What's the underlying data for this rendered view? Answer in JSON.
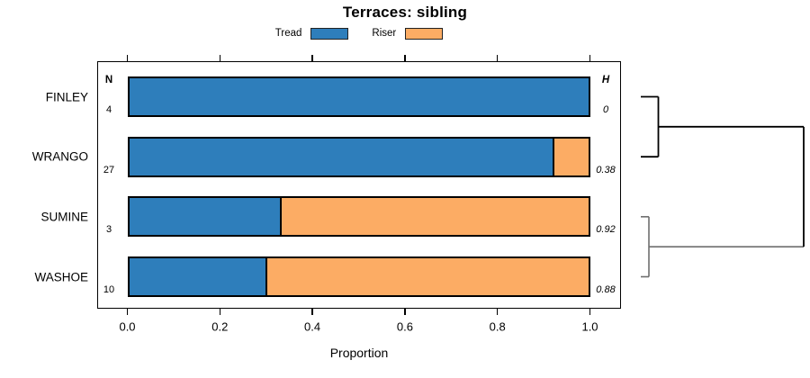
{
  "title": "Terraces: sibling",
  "legend": [
    {
      "label": "Tread",
      "color": "#2E7EBB"
    },
    {
      "label": "Riser",
      "color": "#FCAC64"
    }
  ],
  "columns": {
    "n_header": "N",
    "h_header": "H"
  },
  "xaxis": {
    "label": "Proportion",
    "tick_labels": [
      "0.0",
      "0.2",
      "0.4",
      "0.6",
      "0.8",
      "1.0"
    ]
  },
  "chart_data": {
    "type": "bar",
    "orientation": "horizontal",
    "stacked": true,
    "title": "Terraces: sibling",
    "xlabel": "Proportion",
    "xlim": [
      0,
      1
    ],
    "xticks": [
      0,
      0.2,
      0.4,
      0.6,
      0.8,
      1.0
    ],
    "grid": false,
    "legend_position": "top",
    "categories": [
      "FINLEY",
      "WRANGO",
      "SUMINE",
      "WASHOE"
    ],
    "series": [
      {
        "name": "Tread",
        "color": "#2E7EBB",
        "values": [
          1.0,
          0.926,
          0.333,
          0.3
        ]
      },
      {
        "name": "Riser",
        "color": "#FCAC64",
        "values": [
          0.0,
          0.074,
          0.667,
          0.7
        ]
      }
    ],
    "sample_sizes": {
      "header": "N",
      "values": [
        "4",
        "27",
        "3",
        "10"
      ]
    },
    "entropy": {
      "header": "H",
      "values": [
        "0",
        "0.38",
        "0.92",
        "0.88"
      ]
    },
    "dendrogram": {
      "clusters": [
        {
          "member_indices": [
            0,
            1
          ],
          "color": "#000000"
        },
        {
          "member_indices": [
            2,
            3
          ],
          "color": "#6E6E6E"
        }
      ],
      "root_color": "#000000"
    }
  }
}
